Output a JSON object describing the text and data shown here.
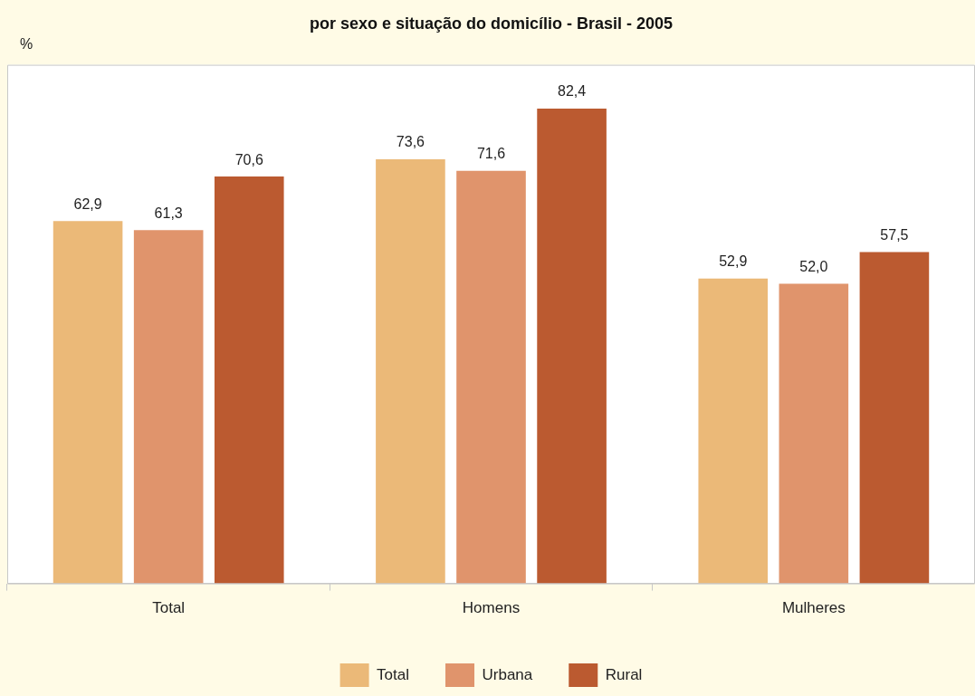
{
  "chart_data": {
    "type": "bar",
    "title": "por sexo e situação do domicílio - Brasil - 2005",
    "ylabel": "%",
    "categories": [
      "Total",
      "Homens",
      "Mulheres"
    ],
    "series": [
      {
        "name": "Total",
        "color": "#ebb978",
        "values": [
          62.9,
          73.6,
          52.9
        ],
        "value_labels": [
          "62,9",
          "73,6",
          "52,9"
        ]
      },
      {
        "name": "Urbana",
        "color": "#e0946c",
        "values": [
          61.3,
          71.6,
          52.0
        ],
        "value_labels": [
          "61,3",
          "71,6",
          "52,0"
        ]
      },
      {
        "name": "Rural",
        "color": "#bb5a30",
        "values": [
          70.6,
          82.4,
          57.5
        ],
        "value_labels": [
          "70,6",
          "82,4",
          "57,5"
        ]
      }
    ],
    "grid": false,
    "legend": "bottom"
  }
}
